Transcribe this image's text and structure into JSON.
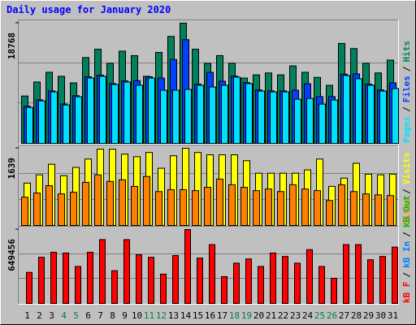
{
  "chart_data": {
    "type": "bar",
    "title": "Daily usage for January 2020",
    "categories": [
      "1",
      "2",
      "3",
      "4",
      "5",
      "6",
      "7",
      "8",
      "9",
      "10",
      "11",
      "12",
      "13",
      "14",
      "15",
      "16",
      "17",
      "18",
      "19",
      "20",
      "21",
      "22",
      "23",
      "24",
      "25",
      "26",
      "27",
      "28",
      "29",
      "30",
      "31"
    ],
    "highlight_categories": [
      "4",
      "5",
      "11",
      "12",
      "18",
      "19",
      "25",
      "26"
    ],
    "highlight_color": "#008040",
    "category_color": "#000000",
    "legend_separator": "/",
    "panels": [
      {
        "ylim": [
          0,
          18768
        ],
        "yticks": [
          18768
        ],
        "series": [
          {
            "name": "Pages",
            "color": "#00e0ff",
            "values": [
              5620,
              6640,
              8040,
              6000,
              7280,
              10200,
              10470,
              9190,
              9580,
              9070,
              10200,
              8300,
              8300,
              8430,
              9070,
              8810,
              9070,
              10340,
              9320,
              8170,
              8040,
              8040,
              6900,
              7020,
              6130,
              6770,
              10600,
              10090,
              9070,
              8170,
              8560
            ]
          },
          {
            "name": "Files",
            "color": "#0040ff",
            "values": [
              5800,
              6800,
              8200,
              6150,
              7450,
              10400,
              10650,
              9350,
              9750,
              9800,
              10400,
              10200,
              13100,
              16200,
              9250,
              11100,
              9700,
              10500,
              9500,
              8350,
              8200,
              8200,
              8300,
              9300,
              7300,
              7300,
              10800,
              10850,
              9250,
              8350,
              9450
            ]
          },
          {
            "name": "Hits",
            "color": "#00805c",
            "values": [
              7400,
              9580,
              11100,
              10470,
              9450,
              13400,
              14700,
              12500,
              14400,
              13700,
              10470,
              14200,
              16700,
              18768,
              14700,
              12500,
              13700,
              12500,
              10200,
              10700,
              11000,
              10700,
              12100,
              11100,
              10300,
              9070,
              15600,
              14800,
              12500,
              11000,
              13000
            ]
          }
        ]
      },
      {
        "ylim": [
          0,
          1639
        ],
        "yticks": [
          1639
        ],
        "series": [
          {
            "name": "Sites",
            "color": "#ff8000",
            "values": [
              600,
              690,
              845,
              670,
              705,
              915,
              1075,
              935,
              970,
              830,
              1040,
              720,
              760,
              760,
              740,
              810,
              985,
              865,
              810,
              740,
              775,
              720,
              865,
              775,
              740,
              530,
              865,
              720,
              670,
              650,
              635
            ]
          },
          {
            "name": "Visits",
            "color": "#ffff00",
            "values": [
              900,
              1075,
              1300,
              1057,
              1233,
              1410,
              1620,
              1620,
              1515,
              1460,
              1550,
              1215,
              1480,
              1639,
              1550,
              1500,
              1500,
              1500,
              1375,
              1110,
              1110,
              1110,
              1110,
              1180,
              1410,
              830,
              1005,
              1320,
              1090,
              1075,
              1090
            ]
          }
        ]
      },
      {
        "ylim": [
          0,
          649456
        ],
        "yticks": [
          649456
        ],
        "series": [
          {
            "name": "kB F",
            "color": "#ff0000",
            "values": [
              273000,
              406000,
              450000,
              443000,
              325000,
              450000,
              561000,
              288000,
              561000,
              428000,
              406000,
              258000,
              421000,
              649456,
              399000,
              517000,
              236000,
              354000,
              391000,
              325000,
              443000,
              413000,
              354000,
              473000,
              325000,
              221000,
              517000,
              517000,
              384000,
              413000,
              495000
            ]
          },
          {
            "name": "kB In",
            "color": "#0080ff",
            "values": [
              0,
              0,
              0,
              0,
              0,
              0,
              0,
              0,
              0,
              0,
              0,
              0,
              0,
              0,
              0,
              0,
              0,
              0,
              0,
              0,
              0,
              0,
              0,
              0,
              0,
              0,
              0,
              0,
              0,
              0,
              0
            ]
          },
          {
            "name": "kB Out",
            "color": "#00c000",
            "values": [
              0,
              0,
              0,
              0,
              0,
              0,
              0,
              0,
              0,
              0,
              0,
              0,
              0,
              0,
              0,
              0,
              0,
              0,
              0,
              0,
              0,
              0,
              0,
              0,
              0,
              0,
              0,
              0,
              0,
              0,
              0
            ]
          }
        ]
      }
    ]
  }
}
